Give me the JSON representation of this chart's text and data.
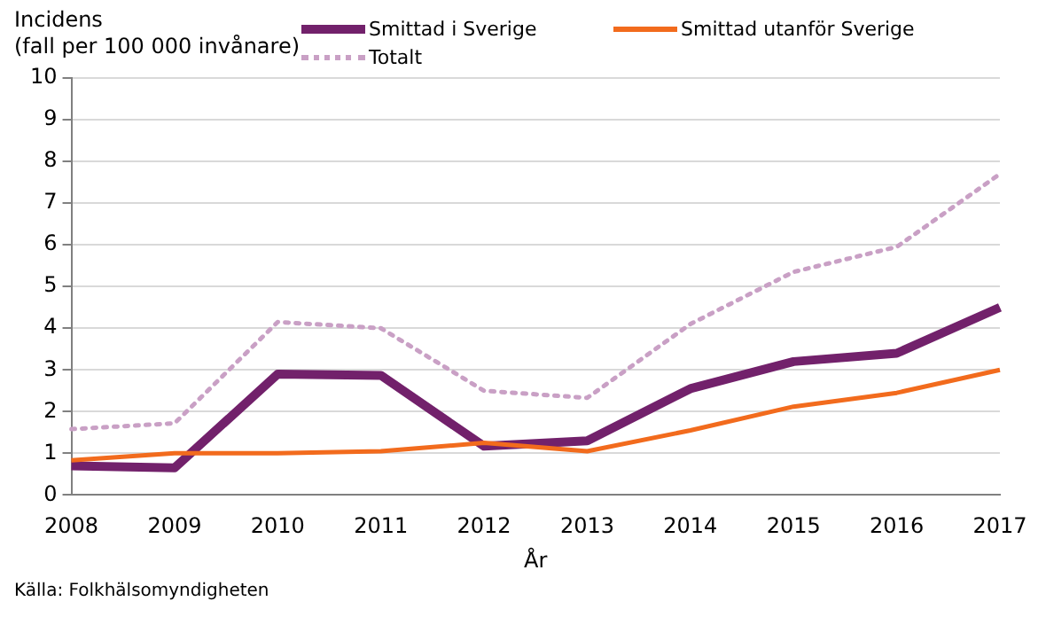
{
  "chart_data": {
    "type": "line",
    "ylabel": "Incidens\n(fall per 100 000 invånare)",
    "xlabel": "År",
    "annotations": [
      "Källa: Folkhälsomyndigheten"
    ],
    "categories": [
      "2008",
      "2009",
      "2010",
      "2011",
      "2012",
      "2013",
      "2014",
      "2015",
      "2016",
      "2017"
    ],
    "series": [
      {
        "name": "Smittad i Sverige",
        "color": "#72216b",
        "values": [
          0.7,
          0.65,
          2.9,
          2.87,
          1.17,
          1.3,
          2.55,
          3.2,
          3.4,
          4.5
        ],
        "line_style": "solid"
      },
      {
        "name": "Smittad utanför Sverige",
        "color": "#f26b1d",
        "values": [
          0.83,
          1.0,
          1.0,
          1.05,
          1.25,
          1.05,
          1.55,
          2.12,
          2.45,
          3.0
        ],
        "line_style": "solid"
      },
      {
        "name": "Totalt",
        "color": "#c9a0c5",
        "values": [
          1.58,
          1.72,
          4.15,
          4.0,
          2.5,
          2.33,
          4.1,
          5.35,
          5.95,
          7.7
        ],
        "line_style": "dotted"
      }
    ],
    "ylim": [
      0,
      10
    ],
    "yticks": [
      0,
      1,
      2,
      3,
      4,
      5,
      6,
      7,
      8,
      9,
      10
    ],
    "grid": "y",
    "legend": "top",
    "marker": "none"
  }
}
